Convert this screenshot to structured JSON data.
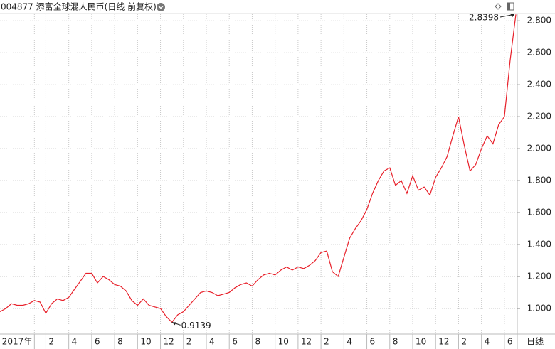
{
  "chart_data": {
    "type": "line",
    "title": "004877 添富全球混人民币(日线 前复权)",
    "period_label": "日线",
    "categories": [
      null,
      null,
      null,
      null,
      null,
      null,
      "2017年",
      null,
      "2",
      null,
      null,
      null,
      "4",
      null,
      null,
      null,
      "6",
      null,
      null,
      null,
      "8",
      null,
      null,
      null,
      "10",
      null,
      null,
      null,
      "12",
      null,
      null,
      null,
      "2",
      null,
      null,
      null,
      "4",
      null,
      null,
      null,
      "6",
      null,
      null,
      null,
      "8",
      null,
      null,
      null,
      "10",
      null,
      null,
      null,
      "12",
      null,
      null,
      null,
      "2",
      null,
      null,
      null,
      "4",
      null,
      null,
      null,
      "6",
      null,
      null,
      null,
      "8",
      null,
      null,
      null,
      "10",
      null,
      null,
      null,
      "12",
      null,
      null,
      null,
      "2",
      null,
      null,
      null,
      "4",
      null,
      null,
      null,
      "6",
      null,
      null
    ],
    "values": [
      0.98,
      1.0,
      1.03,
      1.02,
      1.02,
      1.03,
      1.05,
      1.04,
      0.97,
      1.03,
      1.06,
      1.05,
      1.07,
      1.12,
      1.17,
      1.22,
      1.22,
      1.16,
      1.2,
      1.18,
      1.15,
      1.14,
      1.11,
      1.05,
      1.02,
      1.06,
      1.02,
      1.01,
      1.0,
      0.95,
      0.9139,
      0.96,
      0.98,
      1.02,
      1.06,
      1.1,
      1.11,
      1.1,
      1.08,
      1.09,
      1.1,
      1.13,
      1.15,
      1.16,
      1.14,
      1.18,
      1.21,
      1.22,
      1.21,
      1.24,
      1.26,
      1.24,
      1.26,
      1.25,
      1.27,
      1.3,
      1.35,
      1.36,
      1.23,
      1.2,
      1.32,
      1.44,
      1.5,
      1.55,
      1.62,
      1.72,
      1.8,
      1.86,
      1.88,
      1.77,
      1.8,
      1.72,
      1.83,
      1.74,
      1.76,
      1.71,
      1.82,
      1.88,
      1.95,
      2.08,
      2.2,
      2.02,
      1.86,
      1.9,
      2.0,
      2.08,
      2.03,
      2.15,
      2.2,
      2.55,
      2.8398
    ],
    "color": "#e8202a",
    "ylim": [
      0.84,
      2.85
    ],
    "yticks": [
      {
        "value": 1,
        "label": "1.000"
      },
      {
        "value": 1.2,
        "label": "1.200"
      },
      {
        "value": 1.4,
        "label": "1.400"
      },
      {
        "value": 1.6,
        "label": "1.600"
      },
      {
        "value": 1.8,
        "label": "1.800"
      },
      {
        "value": 2,
        "label": "2.000"
      },
      {
        "value": 2.2,
        "label": "2.200"
      },
      {
        "value": 2.4,
        "label": "2.400"
      },
      {
        "value": 2.6,
        "label": "2.600"
      },
      {
        "value": 2.8,
        "label": "2.800"
      }
    ],
    "grid": true
  }
}
